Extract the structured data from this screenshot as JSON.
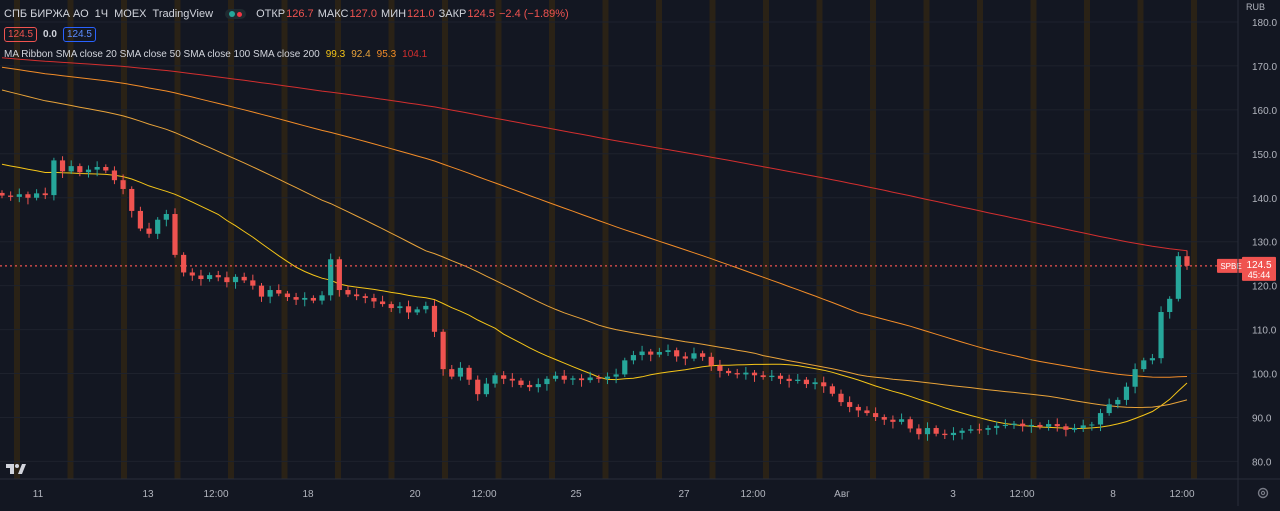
{
  "header": {
    "symbol": "СПБ БИРЖА АО",
    "interval": "1Ч",
    "exchange": "MOEX",
    "source": "TradingView",
    "open_label": "ОТКР",
    "open": "126.7",
    "high_label": "МАКС",
    "high": "127.0",
    "low_label": "МИН",
    "low": "121.0",
    "close_label": "ЗАКР",
    "close": "124.5",
    "change": "−2.4 (−1.89%)"
  },
  "price_boxes": {
    "sell": "124.5",
    "spread": "0.0",
    "buy": "124.5"
  },
  "indicator": {
    "label": "MA Ribbon SMA close 20 SMA close 50 SMA close 100 SMA close 200",
    "v20": "99.3",
    "v50": "92.4",
    "v100": "95.3",
    "v200": "104.1"
  },
  "currency": "RUB",
  "colors": {
    "bg": "#131722",
    "up": "#26a69a",
    "down": "#ef5350",
    "ma20": "#f5c518",
    "ma50": "#e8a33a",
    "ma100": "#f28c28",
    "ma200": "#d32f2f",
    "session": "#2a2216",
    "grid": "#1e222d"
  },
  "chart_data": {
    "type": "candlestick",
    "title": "СПБ БИРЖА АО · 1Ч · MOEX",
    "y_range": [
      76,
      185
    ],
    "y_ticks": [
      80,
      90,
      100,
      110,
      120,
      130,
      140,
      150,
      160,
      170,
      180
    ],
    "x_ticks": [
      "11",
      "13",
      "12:00",
      "18",
      "20",
      "12:00",
      "25",
      "27",
      "12:00",
      "Авг",
      "3",
      "12:00",
      "8",
      "12:00"
    ],
    "current_price": 124.5,
    "price_tag": {
      "symbol": "SPBE",
      "price": "124.5",
      "countdown": "45:44"
    },
    "closes": [
      140.5,
      140.2,
      140.8,
      140.0,
      141.0,
      140.6,
      148.5,
      146.0,
      147.2,
      145.8,
      146.4,
      147.0,
      146.2,
      144.0,
      142.0,
      137.0,
      133.0,
      131.8,
      135.0,
      136.3,
      127.0,
      123.0,
      122.3,
      121.5,
      122.4,
      121.9,
      120.8,
      122.0,
      121.2,
      120.0,
      117.5,
      119.0,
      118.2,
      117.4,
      116.8,
      117.2,
      116.6,
      117.8,
      126.0,
      119.0,
      118.0,
      117.6,
      117.2,
      116.4,
      115.8,
      114.9,
      115.3,
      113.9,
      114.6,
      115.4,
      109.5,
      101.0,
      99.3,
      101.3,
      98.6,
      95.3,
      97.7,
      99.6,
      98.8,
      98.4,
      97.4,
      96.9,
      97.6,
      98.8,
      99.5,
      98.6,
      98.9,
      98.5,
      99.1,
      98.8,
      99.3,
      99.8,
      103.0,
      104.2,
      105.0,
      104.3,
      104.9,
      105.3,
      103.9,
      103.4,
      104.6,
      103.8,
      101.8,
      100.6,
      100.1,
      99.8,
      100.2,
      99.6,
      99.2,
      99.5,
      98.8,
      98.3,
      98.6,
      97.6,
      98.0,
      97.1,
      95.4,
      93.5,
      92.4,
      91.6,
      91.0,
      90.1,
      89.5,
      89.0,
      89.6,
      87.5,
      86.2,
      87.6,
      86.3,
      86.0,
      86.5,
      87.0,
      87.3,
      87.2,
      87.6,
      88.1,
      88.3,
      88.6,
      88.0,
      88.3,
      87.9,
      88.5,
      88.0,
      87.2,
      87.6,
      88.2,
      88.4,
      91.0,
      93.0,
      94.0,
      97.0,
      101.0,
      103.0,
      103.5,
      114.0,
      117.0,
      126.7,
      124.5
    ]
  }
}
